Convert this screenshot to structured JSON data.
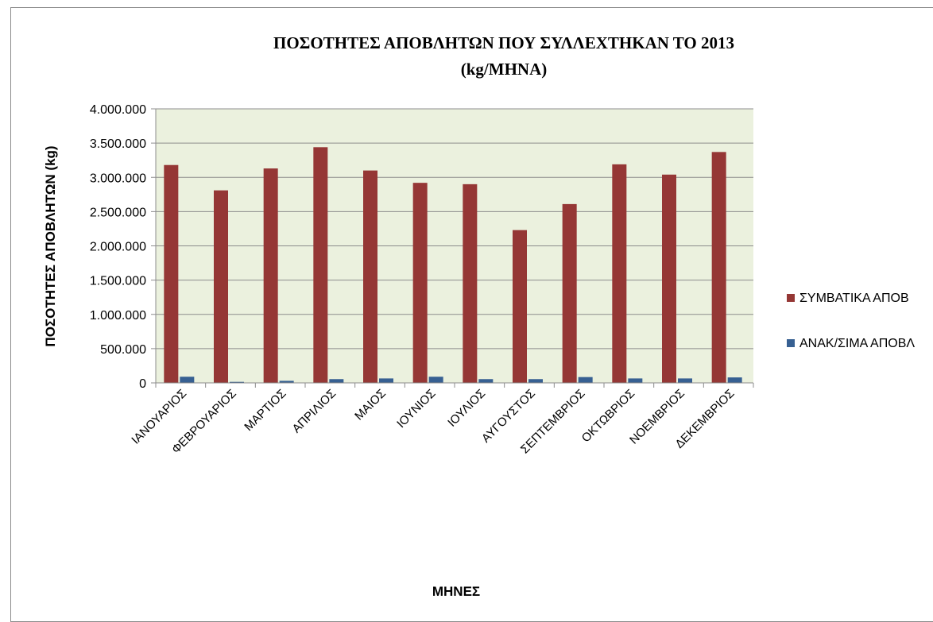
{
  "chart_data": {
    "type": "bar",
    "title": "ΠΟΣΟΤΗΤΕΣ ΑΠΟΒΛΗΤΩΝ ΠΟΥ ΣΥΛΛΕΧΤΗΚΑΝ  ΤΟ 2013",
    "subtitle": "(kg/ΜΗΝΑ)",
    "xlabel": "ΜΗΝΕΣ",
    "ylabel": "ΠΟΣΟΤΗΤΕΣ  ΑΠΟΒΛΗΤΩΝ (kg)",
    "ylim": [
      0,
      4000000
    ],
    "yticks": [
      "0",
      "500.000",
      "1.000.000",
      "1.500.000",
      "2.000.000",
      "2.500.000",
      "3.000.000",
      "3.500.000",
      "4.000.000"
    ],
    "categories": [
      "ΙΑΝΟΥΑΡΙΟΣ",
      "ΦΕΒΡΟΥΑΡΙΟΣ",
      "ΜΑΡΤΙΟΣ",
      "ΑΠΡΙΛΙΟΣ",
      "ΜΑΙΟΣ",
      "ΙΟΥΝΙΟΣ",
      "ΙΟΥΛΙΟΣ",
      "ΑΥΓΟΥΣΤΟΣ",
      "ΣΕΠΤΕΜΒΡΙΟΣ",
      "ΟΚΤΩΒΡΙΟΣ",
      "ΝΟΕΜΒΡΙΟΣ",
      "ΔΕΚΕΜΒΡΙΟΣ"
    ],
    "series": [
      {
        "name": "ΣΥΜΒΑΤΙΚΑ ΑΠΟΒ",
        "color": "#953735",
        "values": [
          3180000,
          2810000,
          3130000,
          3440000,
          3100000,
          2920000,
          2900000,
          2230000,
          2610000,
          3190000,
          3040000,
          3370000
        ]
      },
      {
        "name": "ΑΝΑΚ/ΣΙΜΑ ΑΠΟΒΛ",
        "color": "#376092",
        "values": [
          90000,
          15000,
          30000,
          55000,
          65000,
          90000,
          55000,
          55000,
          85000,
          65000,
          65000,
          80000
        ]
      }
    ],
    "grid": true,
    "plot_background": "#ebf1de",
    "legend_position": "right"
  }
}
